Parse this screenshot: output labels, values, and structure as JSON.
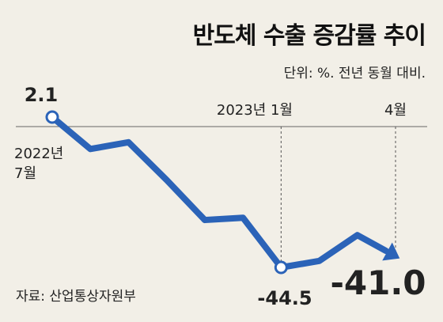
{
  "header": {
    "title": "반도체 수출 증감률 추이",
    "unit": "단위: %. 전년 동월 대비."
  },
  "source": "자료: 산업통상자원부",
  "colors": {
    "line": "#2b63b8",
    "background": "#f2efe7",
    "guide": "#555555",
    "text": "#111111"
  },
  "chart_data": {
    "type": "line",
    "title": "반도체 수출 증감률 추이",
    "xlabel": "",
    "ylabel": "",
    "x": [
      "2022-07",
      "2022-08",
      "2022-09",
      "2022-10",
      "2022-11",
      "2022-12",
      "2023-01",
      "2023-02",
      "2023-03",
      "2023-04"
    ],
    "series": [
      {
        "values": [
          2.1,
          -7.8,
          -5.7,
          -17.4,
          -29.8,
          -29.1,
          -44.5,
          -42.5,
          -34.5,
          -41.0
        ]
      }
    ],
    "ylim": [
      -50,
      5
    ],
    "grid": false,
    "annotations": [
      {
        "x": "2022-07",
        "label": "2022년",
        "sublabel": "7월",
        "value_label": "2.1"
      },
      {
        "x": "2023-01",
        "label": "2023년 1월",
        "value_label": "-44.5"
      },
      {
        "x": "2023-04",
        "label": "4월",
        "value_label": "-41.0"
      }
    ]
  }
}
